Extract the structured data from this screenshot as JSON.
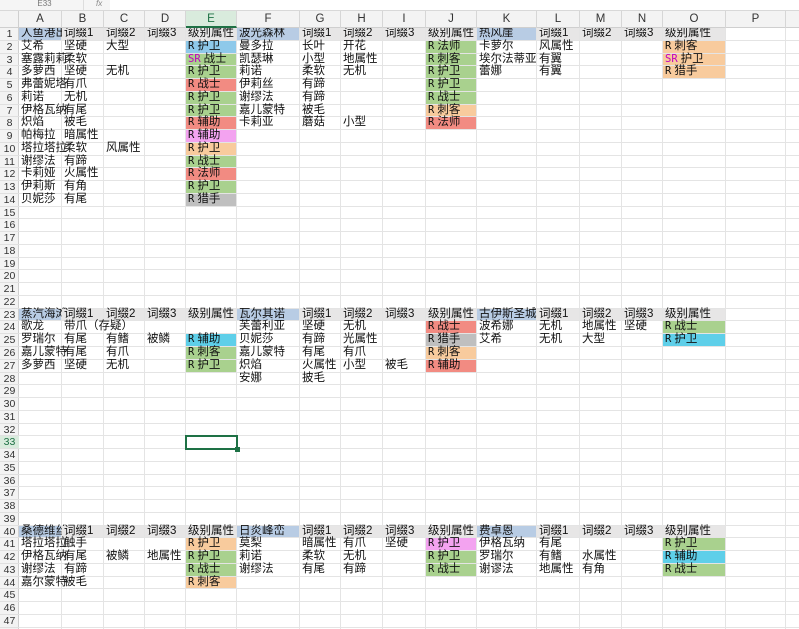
{
  "toolbar": {
    "name_box": "E33",
    "fx_label": "fx",
    "formula": ""
  },
  "selected_cell": {
    "col": "E",
    "row": 33
  },
  "columns": [
    "A",
    "B",
    "C",
    "D",
    "E",
    "F",
    "G",
    "H",
    "I",
    "J",
    "K",
    "L",
    "M",
    "N",
    "O",
    "P"
  ],
  "rows": [
    1,
    2,
    3,
    4,
    5,
    6,
    7,
    8,
    9,
    10,
    11,
    12,
    13,
    14,
    15,
    16,
    17,
    18,
    19,
    20,
    21,
    22,
    23,
    24,
    25,
    26,
    27,
    28,
    29,
    30,
    31,
    32,
    33,
    34,
    35,
    36,
    37,
    38,
    39,
    40,
    41,
    42,
    43,
    44,
    45,
    46,
    47
  ],
  "colors": {
    "header_blue": "#b8cce4",
    "header_gray": "#e7e6e6",
    "blue": "#8ec9ea",
    "green": "#a9d18e",
    "orange": "#f8cb9d",
    "red": "#f28b82",
    "pink": "#f3a3f0",
    "gray": "#bfbfbf",
    "cyan": "#5ecfe9",
    "selection": "#1e7145"
  },
  "cells": [
    {
      "c": "A",
      "r": 1,
      "v": "人鱼港出货",
      "fill": "header_blue"
    },
    {
      "c": "B",
      "r": 1,
      "v": "词缀1",
      "fill": "header_gray"
    },
    {
      "c": "C",
      "r": 1,
      "v": "词缀2",
      "fill": "header_gray"
    },
    {
      "c": "D",
      "r": 1,
      "v": "词缀3",
      "fill": "header_gray"
    },
    {
      "c": "E",
      "r": 1,
      "v": "级别属性",
      "fill": "header_gray"
    },
    {
      "c": "F",
      "r": 1,
      "v": "波光森林",
      "fill": "header_blue"
    },
    {
      "c": "G",
      "r": 1,
      "v": "词缀1",
      "fill": "header_gray"
    },
    {
      "c": "H",
      "r": 1,
      "v": "词缀2",
      "fill": "header_gray"
    },
    {
      "c": "I",
      "r": 1,
      "v": "词缀3",
      "fill": "header_gray"
    },
    {
      "c": "J",
      "r": 1,
      "v": "级别属性",
      "fill": "header_gray"
    },
    {
      "c": "K",
      "r": 1,
      "v": "热风崖",
      "fill": "header_blue"
    },
    {
      "c": "L",
      "r": 1,
      "v": "词缀1",
      "fill": "header_gray"
    },
    {
      "c": "M",
      "r": 1,
      "v": "词缀2",
      "fill": "header_gray"
    },
    {
      "c": "N",
      "r": 1,
      "v": "词缀3",
      "fill": "header_gray"
    },
    {
      "c": "O",
      "r": 1,
      "v": "级别属性",
      "fill": "header_gray"
    },
    {
      "c": "A",
      "r": 2,
      "v": "艾希"
    },
    {
      "c": "B",
      "r": 2,
      "v": "坚硬"
    },
    {
      "c": "C",
      "r": 2,
      "v": "大型"
    },
    {
      "c": "E",
      "r": 2,
      "g": "R",
      "v": "护卫",
      "fill": "blue"
    },
    {
      "c": "F",
      "r": 2,
      "v": "曼多拉"
    },
    {
      "c": "G",
      "r": 2,
      "v": "长叶"
    },
    {
      "c": "H",
      "r": 2,
      "v": "开花"
    },
    {
      "c": "J",
      "r": 2,
      "g": "R",
      "v": "法师",
      "fill": "green"
    },
    {
      "c": "K",
      "r": 2,
      "v": "卡萝尔"
    },
    {
      "c": "L",
      "r": 2,
      "v": "风属性"
    },
    {
      "c": "O",
      "r": 2,
      "g": "R",
      "v": "刺客",
      "fill": "orange"
    },
    {
      "c": "A",
      "r": 3,
      "v": "塞露莉莉"
    },
    {
      "c": "B",
      "r": 3,
      "v": "柔软"
    },
    {
      "c": "E",
      "r": 3,
      "g": "SR",
      "v": "战士",
      "fill": "green",
      "gcolor": "#c000c0"
    },
    {
      "c": "F",
      "r": 3,
      "v": "凯瑟琳"
    },
    {
      "c": "G",
      "r": 3,
      "v": "小型"
    },
    {
      "c": "H",
      "r": 3,
      "v": "地属性"
    },
    {
      "c": "J",
      "r": 3,
      "g": "R",
      "v": "刺客",
      "fill": "green"
    },
    {
      "c": "K",
      "r": 3,
      "v": "埃尔法蒂亚"
    },
    {
      "c": "L",
      "r": 3,
      "v": "有翼"
    },
    {
      "c": "O",
      "r": 3,
      "g": "SR",
      "v": "护卫",
      "fill": "orange",
      "gcolor": "#c000c0"
    },
    {
      "c": "A",
      "r": 4,
      "v": "多萝西"
    },
    {
      "c": "B",
      "r": 4,
      "v": "坚硬"
    },
    {
      "c": "C",
      "r": 4,
      "v": "无机"
    },
    {
      "c": "E",
      "r": 4,
      "g": "R",
      "v": "护卫",
      "fill": "green"
    },
    {
      "c": "F",
      "r": 4,
      "v": "莉诺"
    },
    {
      "c": "G",
      "r": 4,
      "v": "柔软"
    },
    {
      "c": "H",
      "r": 4,
      "v": "无机"
    },
    {
      "c": "J",
      "r": 4,
      "g": "R",
      "v": "护卫",
      "fill": "green"
    },
    {
      "c": "K",
      "r": 4,
      "v": "蕾娜"
    },
    {
      "c": "L",
      "r": 4,
      "v": "有翼"
    },
    {
      "c": "O",
      "r": 4,
      "g": "R",
      "v": "猎手",
      "fill": "orange"
    },
    {
      "c": "A",
      "r": 5,
      "v": "弗蕾妮塔"
    },
    {
      "c": "B",
      "r": 5,
      "v": "有爪"
    },
    {
      "c": "E",
      "r": 5,
      "g": "R",
      "v": "战士",
      "fill": "red"
    },
    {
      "c": "F",
      "r": 5,
      "v": "伊莉丝"
    },
    {
      "c": "G",
      "r": 5,
      "v": "有蹄"
    },
    {
      "c": "J",
      "r": 5,
      "g": "R",
      "v": "护卫",
      "fill": "green"
    },
    {
      "c": "A",
      "r": 6,
      "v": "莉诺"
    },
    {
      "c": "B",
      "r": 6,
      "v": "无机"
    },
    {
      "c": "E",
      "r": 6,
      "g": "R",
      "v": "护卫",
      "fill": "green"
    },
    {
      "c": "F",
      "r": 6,
      "v": "谢缪法"
    },
    {
      "c": "G",
      "r": 6,
      "v": "有蹄"
    },
    {
      "c": "J",
      "r": 6,
      "g": "R",
      "v": "战士",
      "fill": "green"
    },
    {
      "c": "A",
      "r": 7,
      "v": "伊格瓦纳"
    },
    {
      "c": "B",
      "r": 7,
      "v": "有尾"
    },
    {
      "c": "E",
      "r": 7,
      "g": "R",
      "v": "护卫",
      "fill": "green"
    },
    {
      "c": "F",
      "r": 7,
      "v": "嘉儿蒙特"
    },
    {
      "c": "G",
      "r": 7,
      "v": "被毛"
    },
    {
      "c": "J",
      "r": 7,
      "g": "R",
      "v": "刺客",
      "fill": "orange"
    },
    {
      "c": "A",
      "r": 8,
      "v": "炽焰"
    },
    {
      "c": "B",
      "r": 8,
      "v": "被毛"
    },
    {
      "c": "E",
      "r": 8,
      "g": "R",
      "v": "辅助",
      "fill": "red"
    },
    {
      "c": "F",
      "r": 8,
      "v": "卡莉亚"
    },
    {
      "c": "G",
      "r": 8,
      "v": "蘑菇"
    },
    {
      "c": "H",
      "r": 8,
      "v": "小型"
    },
    {
      "c": "J",
      "r": 8,
      "g": "R",
      "v": "法师",
      "fill": "red"
    },
    {
      "c": "A",
      "r": 9,
      "v": "帕梅拉"
    },
    {
      "c": "B",
      "r": 9,
      "v": "暗属性"
    },
    {
      "c": "E",
      "r": 9,
      "g": "R",
      "v": "辅助",
      "fill": "pink"
    },
    {
      "c": "A",
      "r": 10,
      "v": "塔拉塔拉"
    },
    {
      "c": "B",
      "r": 10,
      "v": " 柔软"
    },
    {
      "c": "C",
      "r": 10,
      "v": "风属性"
    },
    {
      "c": "E",
      "r": 10,
      "g": "R",
      "v": "护卫",
      "fill": "orange"
    },
    {
      "c": "A",
      "r": 11,
      "v": "谢缪法"
    },
    {
      "c": "B",
      "r": 11,
      "v": "有蹄"
    },
    {
      "c": "E",
      "r": 11,
      "g": "R",
      "v": "战士",
      "fill": "green"
    },
    {
      "c": "A",
      "r": 12,
      "v": "卡莉娅"
    },
    {
      "c": "B",
      "r": 12,
      "v": "火属性"
    },
    {
      "c": "E",
      "r": 12,
      "g": "R",
      "v": "法师",
      "fill": "red"
    },
    {
      "c": "A",
      "r": 13,
      "v": "伊莉斯"
    },
    {
      "c": "B",
      "r": 13,
      "v": "有角"
    },
    {
      "c": "E",
      "r": 13,
      "g": "R",
      "v": "护卫",
      "fill": "green"
    },
    {
      "c": "A",
      "r": 14,
      "v": "贝妮莎"
    },
    {
      "c": "B",
      "r": 14,
      "v": "有尾"
    },
    {
      "c": "E",
      "r": 14,
      "g": "R",
      "v": "猎手",
      "fill": "gray"
    },
    {
      "c": "A",
      "r": 23,
      "v": "蒸汽海滩",
      "fill": "header_blue"
    },
    {
      "c": "B",
      "r": 23,
      "v": "词缀1",
      "fill": "header_gray"
    },
    {
      "c": "C",
      "r": 23,
      "v": "词缀2",
      "fill": "header_gray"
    },
    {
      "c": "D",
      "r": 23,
      "v": "词缀3",
      "fill": "header_gray"
    },
    {
      "c": "E",
      "r": 23,
      "v": "级别属性",
      "fill": "header_gray"
    },
    {
      "c": "F",
      "r": 23,
      "v": "瓦尔其诺",
      "fill": "header_blue"
    },
    {
      "c": "G",
      "r": 23,
      "v": "词缀1",
      "fill": "header_gray"
    },
    {
      "c": "H",
      "r": 23,
      "v": "词缀2",
      "fill": "header_gray"
    },
    {
      "c": "I",
      "r": 23,
      "v": "词缀3",
      "fill": "header_gray"
    },
    {
      "c": "J",
      "r": 23,
      "v": "级别属性",
      "fill": "header_gray"
    },
    {
      "c": "K",
      "r": 23,
      "v": "古伊斯圣城",
      "fill": "header_blue"
    },
    {
      "c": "L",
      "r": 23,
      "v": "词缀1",
      "fill": "header_gray"
    },
    {
      "c": "M",
      "r": 23,
      "v": "词缀2",
      "fill": "header_gray"
    },
    {
      "c": "N",
      "r": 23,
      "v": "词缀3",
      "fill": "header_gray"
    },
    {
      "c": "O",
      "r": 23,
      "v": "级别属性",
      "fill": "header_gray"
    },
    {
      "c": "A",
      "r": 24,
      "v": "歌龙"
    },
    {
      "c": "B",
      "r": 24,
      "v": "带爪（存疑）"
    },
    {
      "c": "F",
      "r": 24,
      "v": "芙蕾利亚"
    },
    {
      "c": "G",
      "r": 24,
      "v": "坚硬"
    },
    {
      "c": "H",
      "r": 24,
      "v": "无机"
    },
    {
      "c": "J",
      "r": 24,
      "g": "R",
      "v": "战士",
      "fill": "red"
    },
    {
      "c": "K",
      "r": 24,
      "v": "波希娜"
    },
    {
      "c": "L",
      "r": 24,
      "v": "无机"
    },
    {
      "c": "M",
      "r": 24,
      "v": "地属性"
    },
    {
      "c": "N",
      "r": 24,
      "v": "坚硬"
    },
    {
      "c": "O",
      "r": 24,
      "g": "R",
      "v": "战士",
      "fill": "green"
    },
    {
      "c": "A",
      "r": 25,
      "v": "罗瑞尔"
    },
    {
      "c": "B",
      "r": 25,
      "v": "有尾"
    },
    {
      "c": "C",
      "r": 25,
      "v": "有鳍"
    },
    {
      "c": "D",
      "r": 25,
      "v": "被鳞"
    },
    {
      "c": "E",
      "r": 25,
      "g": "R",
      "v": "辅助",
      "fill": "cyan"
    },
    {
      "c": "F",
      "r": 25,
      "v": "贝妮莎"
    },
    {
      "c": "G",
      "r": 25,
      "v": "有蹄"
    },
    {
      "c": "H",
      "r": 25,
      "v": "光属性"
    },
    {
      "c": "J",
      "r": 25,
      "g": "R",
      "v": "猎手",
      "fill": "gray"
    },
    {
      "c": "K",
      "r": 25,
      "v": "艾希"
    },
    {
      "c": "L",
      "r": 25,
      "v": "无机"
    },
    {
      "c": "M",
      "r": 25,
      "v": "大型"
    },
    {
      "c": "O",
      "r": 25,
      "g": "R",
      "v": "护卫",
      "fill": "cyan"
    },
    {
      "c": "A",
      "r": 26,
      "v": "嘉儿蒙特"
    },
    {
      "c": "B",
      "r": 26,
      "v": "有尾"
    },
    {
      "c": "C",
      "r": 26,
      "v": "有爪"
    },
    {
      "c": "E",
      "r": 26,
      "g": "R",
      "v": "刺客",
      "fill": "green"
    },
    {
      "c": "F",
      "r": 26,
      "v": "嘉儿蒙特"
    },
    {
      "c": "G",
      "r": 26,
      "v": "有尾"
    },
    {
      "c": "H",
      "r": 26,
      "v": "有爪"
    },
    {
      "c": "J",
      "r": 26,
      "g": "R",
      "v": "刺客",
      "fill": "orange"
    },
    {
      "c": "A",
      "r": 27,
      "v": "多萝西"
    },
    {
      "c": "B",
      "r": 27,
      "v": "坚硬"
    },
    {
      "c": "C",
      "r": 27,
      "v": "无机"
    },
    {
      "c": "E",
      "r": 27,
      "g": "R",
      "v": "护卫",
      "fill": "green"
    },
    {
      "c": "F",
      "r": 27,
      "v": "炽焰"
    },
    {
      "c": "G",
      "r": 27,
      "v": "火属性"
    },
    {
      "c": "H",
      "r": 27,
      "v": "小型"
    },
    {
      "c": "I",
      "r": 27,
      "v": "被毛"
    },
    {
      "c": "J",
      "r": 27,
      "g": "R",
      "v": "辅助",
      "fill": "red"
    },
    {
      "c": "F",
      "r": 28,
      "v": "安娜"
    },
    {
      "c": "G",
      "r": 28,
      "v": "披毛"
    },
    {
      "c": "A",
      "r": 40,
      "v": "桑德维丝",
      "fill": "header_blue"
    },
    {
      "c": "B",
      "r": 40,
      "v": "词缀1",
      "fill": "header_gray"
    },
    {
      "c": "C",
      "r": 40,
      "v": "词缀2",
      "fill": "header_gray"
    },
    {
      "c": "D",
      "r": 40,
      "v": "词缀3",
      "fill": "header_gray"
    },
    {
      "c": "E",
      "r": 40,
      "v": "级别属性",
      "fill": "header_gray"
    },
    {
      "c": "F",
      "r": 40,
      "v": "日炎峰峦",
      "fill": "header_blue"
    },
    {
      "c": "G",
      "r": 40,
      "v": "词缀1",
      "fill": "header_gray"
    },
    {
      "c": "H",
      "r": 40,
      "v": "词缀2",
      "fill": "header_gray"
    },
    {
      "c": "I",
      "r": 40,
      "v": "词缀3",
      "fill": "header_gray"
    },
    {
      "c": "J",
      "r": 40,
      "v": "级别属性",
      "fill": "header_gray"
    },
    {
      "c": "K",
      "r": 40,
      "v": "费卓恩",
      "fill": "header_blue"
    },
    {
      "c": "L",
      "r": 40,
      "v": "词缀1",
      "fill": "header_gray"
    },
    {
      "c": "M",
      "r": 40,
      "v": "词缀2",
      "fill": "header_gray"
    },
    {
      "c": "N",
      "r": 40,
      "v": "词缀3",
      "fill": "header_gray"
    },
    {
      "c": "O",
      "r": 40,
      "v": "级别属性",
      "fill": "header_gray"
    },
    {
      "c": "A",
      "r": 41,
      "v": "塔拉塔拉"
    },
    {
      "c": "B",
      "r": 41,
      "v": "触手"
    },
    {
      "c": "E",
      "r": 41,
      "g": "R",
      "v": "护卫",
      "fill": "orange"
    },
    {
      "c": "F",
      "r": 41,
      "v": "莫梨"
    },
    {
      "c": "G",
      "r": 41,
      "v": "暗属性"
    },
    {
      "c": "H",
      "r": 41,
      "v": "有爪"
    },
    {
      "c": "I",
      "r": 41,
      "v": "坚硬"
    },
    {
      "c": "J",
      "r": 41,
      "g": "R",
      "v": "护卫",
      "fill": "pink"
    },
    {
      "c": "K",
      "r": 41,
      "v": "伊格瓦纳"
    },
    {
      "c": "L",
      "r": 41,
      "v": "有尾"
    },
    {
      "c": "O",
      "r": 41,
      "g": "R",
      "v": "护卫",
      "fill": "green"
    },
    {
      "c": "A",
      "r": 42,
      "v": "伊格瓦纳"
    },
    {
      "c": "B",
      "r": 42,
      "v": "有尾"
    },
    {
      "c": "C",
      "r": 42,
      "v": "被鳞"
    },
    {
      "c": "D",
      "r": 42,
      "v": "地属性"
    },
    {
      "c": "E",
      "r": 42,
      "g": "R",
      "v": "护卫",
      "fill": "green"
    },
    {
      "c": "F",
      "r": 42,
      "v": "莉诺"
    },
    {
      "c": "G",
      "r": 42,
      "v": "柔软"
    },
    {
      "c": "H",
      "r": 42,
      "v": "无机"
    },
    {
      "c": "J",
      "r": 42,
      "g": "R",
      "v": "护卫",
      "fill": "green"
    },
    {
      "c": "K",
      "r": 42,
      "v": "罗瑞尔"
    },
    {
      "c": "L",
      "r": 42,
      "v": "有鳍"
    },
    {
      "c": "M",
      "r": 42,
      "v": "水属性"
    },
    {
      "c": "O",
      "r": 42,
      "g": "R",
      "v": "辅助",
      "fill": "cyan"
    },
    {
      "c": "A",
      "r": 43,
      "v": "谢缪法"
    },
    {
      "c": "B",
      "r": 43,
      "v": "有蹄"
    },
    {
      "c": "E",
      "r": 43,
      "g": "R",
      "v": "战士",
      "fill": "green"
    },
    {
      "c": "F",
      "r": 43,
      "v": "谢缪法"
    },
    {
      "c": "G",
      "r": 43,
      "v": "有尾"
    },
    {
      "c": "H",
      "r": 43,
      "v": "有蹄"
    },
    {
      "c": "J",
      "r": 43,
      "g": "R",
      "v": "战士",
      "fill": "green"
    },
    {
      "c": "K",
      "r": 43,
      "v": "谢谬法"
    },
    {
      "c": "L",
      "r": 43,
      "v": "地属性"
    },
    {
      "c": "M",
      "r": 43,
      "v": "有角"
    },
    {
      "c": "O",
      "r": 43,
      "g": "R",
      "v": "战士",
      "fill": "green"
    },
    {
      "c": "A",
      "r": 44,
      "v": "嘉尔蒙特"
    },
    {
      "c": "B",
      "r": 44,
      "v": "被毛"
    },
    {
      "c": "E",
      "r": 44,
      "g": "R",
      "v": "刺客",
      "fill": "orange"
    }
  ]
}
